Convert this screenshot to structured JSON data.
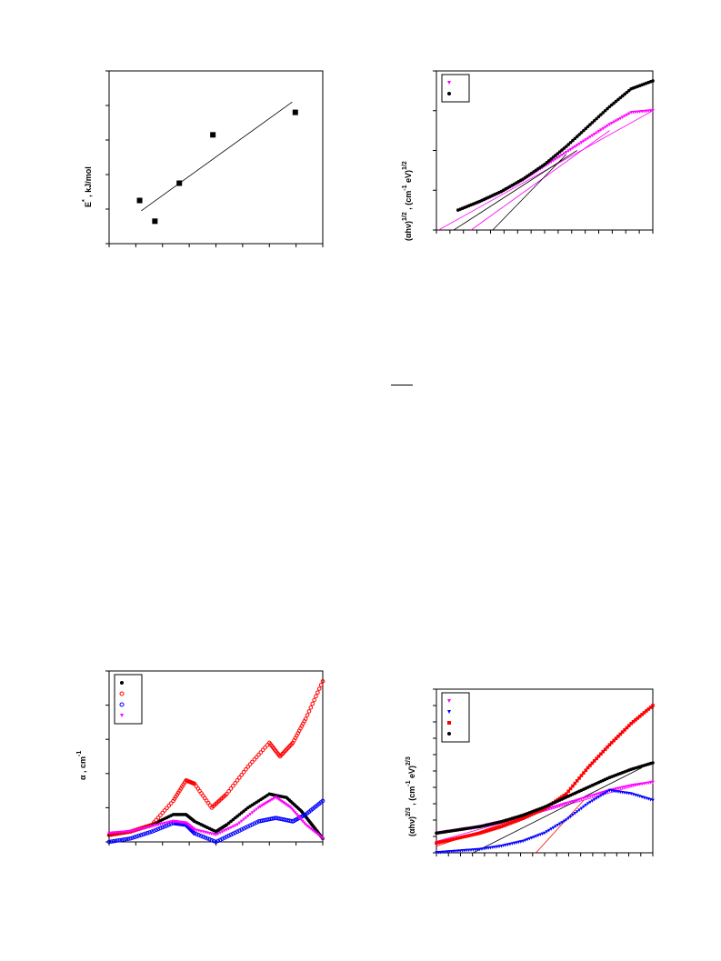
{
  "panels": [
    {
      "id": "activation-energy",
      "ylabel_main": "E",
      "ylabel_sup": "*",
      "ylabel_rest": " , kJ/mol",
      "chart_data": {
        "type": "scatter",
        "title": "",
        "xlabel": "",
        "ylabel": "E* , kJ/mol",
        "xlim": [
          0,
          7
        ],
        "ylim": [
          0,
          5
        ],
        "marker": "square",
        "points": [
          [
            1.0,
            1.25
          ],
          [
            1.5,
            0.65
          ],
          [
            2.3,
            1.75
          ],
          [
            3.4,
            3.15
          ],
          [
            6.1,
            3.8
          ]
        ],
        "fit_line": [
          [
            1.05,
            0.95
          ],
          [
            6.0,
            4.1
          ]
        ]
      }
    },
    {
      "id": "tauc-indirect",
      "ylabel_main": "(αhν)",
      "ylabel_sup": "1/2",
      "ylabel_rest": " , (cm",
      "ylabel_sup2": "-1",
      "ylabel_rest2": " eV)",
      "ylabel_sup3": "1/2",
      "chart_data": {
        "type": "line",
        "title": "",
        "xlabel": "",
        "ylabel": "(αhν)1/2 , (cm-1 eV)1/2",
        "xlim": [
          0,
          10
        ],
        "ylim": [
          0,
          4
        ],
        "legend_position": "top-left",
        "series": [
          {
            "marker": "triangle-down",
            "color": "#ff00ff",
            "x": [
              1.0,
              2.0,
              3.0,
              4.0,
              5.0,
              6.0,
              7.0,
              8.0,
              9.0,
              10.0
            ],
            "y": [
              0.5,
              0.7,
              0.95,
              1.25,
              1.6,
              1.95,
              2.3,
              2.65,
              2.95,
              3.0
            ]
          },
          {
            "marker": "circle",
            "color": "#000000",
            "x": [
              1.0,
              2.0,
              3.0,
              4.0,
              5.0,
              6.0,
              7.0,
              8.0,
              9.0,
              10.0
            ],
            "y": [
              0.5,
              0.72,
              0.97,
              1.28,
              1.65,
              2.1,
              2.6,
              3.1,
              3.55,
              3.75
            ]
          }
        ],
        "fit_lines": [
          {
            "color": "#ff00ff",
            "from": [
              0.1,
              0.0
            ],
            "to": [
              10.0,
              3.0
            ]
          },
          {
            "color": "#ff00ff",
            "from": [
              1.6,
              0.0
            ],
            "to": [
              8.0,
              2.5
            ]
          },
          {
            "color": "#000000",
            "from": [
              0.8,
              0.0
            ],
            "to": [
              6.5,
              2.0
            ]
          },
          {
            "color": "#000000",
            "from": [
              2.6,
              0.0
            ],
            "to": [
              6.0,
              1.9
            ]
          }
        ]
      }
    },
    {
      "id": "absorption",
      "ylabel_main": "α , cm",
      "ylabel_sup": "-1",
      "ylabel_rest": "",
      "chart_data": {
        "type": "line",
        "title": "",
        "xlabel": "",
        "ylabel": "α , cm-1",
        "xlim": [
          0,
          10
        ],
        "ylim": [
          0,
          5
        ],
        "legend_position": "top-left",
        "series": [
          {
            "marker": "circle",
            "color": "#000000",
            "x": [
              0,
              1,
              2,
              3,
              3.6,
              4,
              5,
              5.5,
              6.5,
              7.5,
              8.3,
              9,
              9.5,
              10
            ],
            "y": [
              0.2,
              0.3,
              0.5,
              0.8,
              0.8,
              0.6,
              0.3,
              0.5,
              1.0,
              1.4,
              1.3,
              0.9,
              0.5,
              0.1
            ]
          },
          {
            "marker": "circle-open",
            "color": "#ff0000",
            "x": [
              0,
              1,
              2,
              3,
              3.6,
              4,
              4.8,
              5.5,
              6.5,
              7.5,
              8.0,
              8.6,
              9.2,
              10
            ],
            "y": [
              0.2,
              0.3,
              0.5,
              1.2,
              1.8,
              1.7,
              1.0,
              1.4,
              2.2,
              2.9,
              2.5,
              2.9,
              3.6,
              4.7
            ]
          },
          {
            "marker": "circle-open",
            "color": "#0000ff",
            "x": [
              0,
              1,
              2,
              3,
              3.6,
              4,
              5,
              6,
              7,
              7.8,
              8.6,
              9.2,
              10
            ],
            "y": [
              0.0,
              0.1,
              0.3,
              0.55,
              0.5,
              0.25,
              0.0,
              0.3,
              0.6,
              0.7,
              0.6,
              0.8,
              1.2
            ]
          },
          {
            "marker": "triangle-down",
            "color": "#ff00ff",
            "x": [
              0,
              1,
              2,
              3,
              3.6,
              4,
              5,
              6,
              7,
              7.8,
              8.5,
              9.2,
              10
            ],
            "y": [
              0.25,
              0.3,
              0.45,
              0.6,
              0.55,
              0.35,
              0.2,
              0.5,
              1.0,
              1.3,
              1.0,
              0.5,
              0.1
            ]
          }
        ]
      }
    },
    {
      "id": "tauc-direct",
      "ylabel_main": "(αhν)",
      "ylabel_sup": "2/3",
      "ylabel_rest": " , (cm",
      "ylabel_sup2": "-1",
      "ylabel_rest2": " eV)",
      "ylabel_sup3": "2/3",
      "chart_data": {
        "type": "line",
        "title": "",
        "xlabel": "",
        "ylabel": "(αhν)2/3 , (cm-1 eV)2/3",
        "xlim": [
          0,
          10
        ],
        "ylim": [
          0,
          5
        ],
        "legend_position": "top-left",
        "series": [
          {
            "marker": "triangle-down",
            "color": "#ff00ff",
            "x": [
              0,
              1,
              2,
              3,
              4,
              5,
              6,
              7,
              8,
              9,
              10
            ],
            "y": [
              0.6,
              0.7,
              0.8,
              0.95,
              1.1,
              1.3,
              1.5,
              1.7,
              1.9,
              2.05,
              2.15
            ]
          },
          {
            "marker": "triangle-down",
            "color": "#0000ff",
            "x": [
              0,
              1,
              2,
              3,
              4,
              5,
              6,
              7,
              8,
              9,
              10
            ],
            "y": [
              0.0,
              0.05,
              0.1,
              0.2,
              0.35,
              0.6,
              1.0,
              1.5,
              1.9,
              1.8,
              1.6
            ]
          },
          {
            "marker": "square",
            "color": "#ff0000",
            "x": [
              0,
              1,
              2,
              3,
              4,
              5,
              6,
              7,
              8,
              9,
              10
            ],
            "y": [
              0.3,
              0.45,
              0.6,
              0.8,
              1.05,
              1.35,
              1.8,
              2.6,
              3.3,
              3.95,
              4.5
            ]
          },
          {
            "marker": "circle",
            "color": "#000000",
            "x": [
              0,
              1,
              2,
              3,
              4,
              5,
              6,
              7,
              8,
              9,
              10
            ],
            "y": [
              0.6,
              0.7,
              0.8,
              0.95,
              1.15,
              1.4,
              1.7,
              2.0,
              2.3,
              2.55,
              2.75
            ]
          }
        ],
        "fit_lines": [
          {
            "color": "#ff00ff",
            "from": [
              0.0,
              0.35
            ],
            "to": [
              10.0,
              2.2
            ]
          },
          {
            "color": "#000000",
            "from": [
              1.7,
              0.0
            ],
            "to": [
              9.5,
              2.6
            ]
          },
          {
            "color": "#ff0000",
            "from": [
              4.6,
              0.0
            ],
            "to": [
              6.8,
              1.6
            ]
          },
          {
            "color": "#ff0000",
            "from": [
              0.0,
              0.2
            ],
            "to": [
              6.0,
              1.55
            ]
          }
        ]
      }
    }
  ]
}
